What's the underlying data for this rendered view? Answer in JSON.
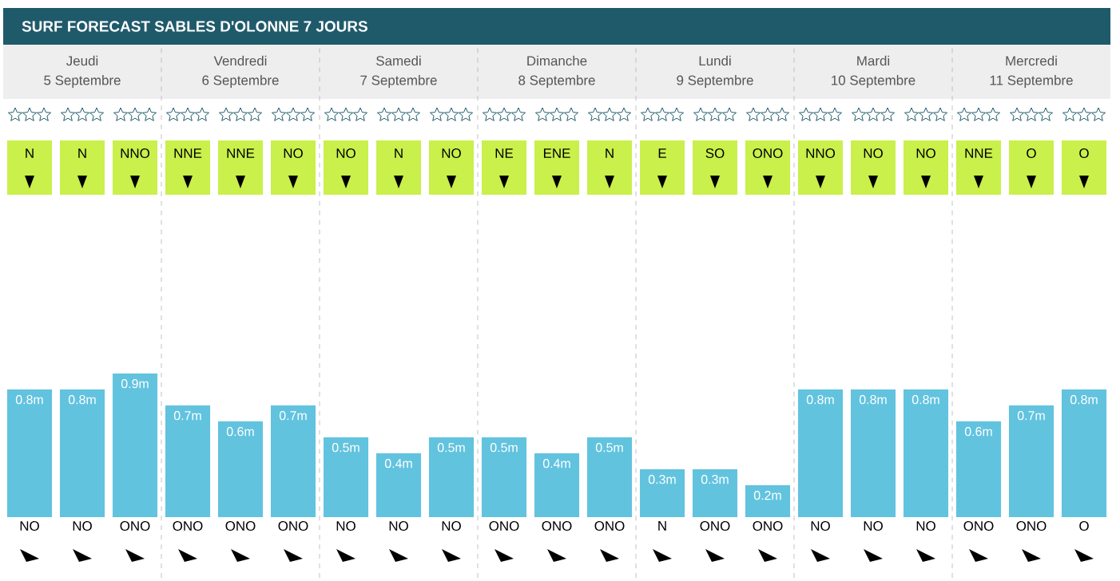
{
  "chart_data": {
    "type": "bar",
    "title": "SURF FORECAST SABLES D'OLONNE 7 JOURS",
    "categories": [
      "NO",
      "NO",
      "ONO",
      "ONO",
      "ONO",
      "ONO",
      "NO",
      "NO",
      "NO",
      "ONO",
      "ONO",
      "ONO",
      "N",
      "ONO",
      "ONO",
      "NO",
      "NO",
      "NO",
      "ONO",
      "ONO",
      "O"
    ],
    "values": [
      0.8,
      0.8,
      0.9,
      0.7,
      0.6,
      0.7,
      0.5,
      0.4,
      0.5,
      0.5,
      0.4,
      0.5,
      0.3,
      0.3,
      0.2,
      0.8,
      0.8,
      0.8,
      0.6,
      0.7,
      0.8
    ],
    "value_labels": [
      "0.8m",
      "0.8m",
      "0.9m",
      "0.7m",
      "0.6m",
      "0.7m",
      "0.5m",
      "0.4m",
      "0.5m",
      "0.5m",
      "0.4m",
      "0.5m",
      "0.3m",
      "0.3m",
      "0.2m",
      "0.8m",
      "0.8m",
      "0.8m",
      "0.6m",
      "0.7m",
      "0.8m"
    ],
    "color": "#62c3df",
    "annotations": [
      "Jeudi",
      "5 Septembre",
      "Vendredi",
      "6 Septembre",
      "Samedi",
      "7 Septembre",
      "Dimanche",
      "8 Septembre",
      "Lundi",
      "9 Septembre",
      "Mardi",
      "10 Septembre",
      "Mercredi",
      "11 Septembre",
      "N",
      "N",
      "NNO",
      "NNE",
      "NNE",
      "NO",
      "NO",
      "N",
      "NO",
      "NE",
      "ENE",
      "N",
      "E",
      "SO",
      "ONO",
      "NNO",
      "NO",
      "NO",
      "NNE",
      "O",
      "O"
    ]
  }
}
